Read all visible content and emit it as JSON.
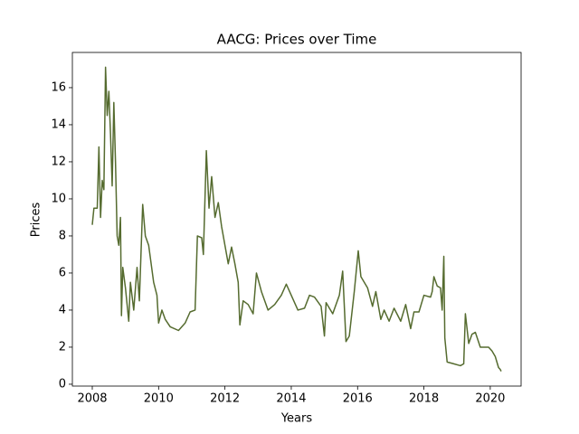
{
  "chart_data": {
    "type": "line",
    "title": "AACG: Prices over Time",
    "title_color": "#00008b",
    "x_label": "Years",
    "y_label": "Prices",
    "axis_label_color": "#b22222",
    "xlim": [
      2007.4,
      2020.93
    ],
    "ylim": [
      -0.1,
      17.9
    ],
    "xticks": [
      2008,
      2010,
      2012,
      2014,
      2016,
      2018,
      2020
    ],
    "yticks": [
      0,
      2,
      4,
      6,
      8,
      10,
      12,
      14,
      16
    ],
    "grid": false,
    "series": [
      {
        "color": "#556b2f",
        "x": [
          2008.0,
          2008.05,
          2008.15,
          2008.2,
          2008.25,
          2008.3,
          2008.35,
          2008.4,
          2008.45,
          2008.5,
          2008.55,
          2008.6,
          2008.65,
          2008.7,
          2008.75,
          2008.8,
          2008.85,
          2008.88,
          2008.92,
          2009.0,
          2009.1,
          2009.15,
          2009.25,
          2009.35,
          2009.42,
          2009.52,
          2009.6,
          2009.7,
          2009.85,
          2009.95,
          2010.0,
          2010.1,
          2010.2,
          2010.35,
          2010.6,
          2010.8,
          2010.95,
          2011.1,
          2011.17,
          2011.3,
          2011.35,
          2011.44,
          2011.52,
          2011.6,
          2011.7,
          2011.8,
          2011.9,
          2012.0,
          2012.1,
          2012.2,
          2012.3,
          2012.4,
          2012.45,
          2012.55,
          2012.7,
          2012.85,
          2012.95,
          2013.1,
          2013.3,
          2013.5,
          2013.7,
          2013.85,
          2014.0,
          2014.2,
          2014.4,
          2014.55,
          2014.7,
          2014.9,
          2015.0,
          2015.05,
          2015.25,
          2015.45,
          2015.55,
          2015.65,
          2015.75,
          2015.9,
          2016.02,
          2016.1,
          2016.3,
          2016.45,
          2016.55,
          2016.7,
          2016.8,
          2016.95,
          2017.1,
          2017.3,
          2017.45,
          2017.6,
          2017.7,
          2017.85,
          2018.0,
          2018.2,
          2018.25,
          2018.3,
          2018.4,
          2018.5,
          2018.55,
          2018.6,
          2018.63,
          2018.7,
          2018.9,
          2019.1,
          2019.2,
          2019.25,
          2019.35,
          2019.45,
          2019.55,
          2019.7,
          2019.95,
          2020.05,
          2020.15,
          2020.2,
          2020.25,
          2020.3,
          2020.33
        ],
        "values": [
          8.6,
          9.5,
          9.5,
          12.8,
          9.0,
          11.0,
          10.5,
          17.1,
          14.5,
          15.8,
          13.5,
          10.7,
          15.2,
          12.0,
          8.0,
          7.5,
          9.0,
          3.7,
          6.3,
          5.2,
          3.4,
          5.5,
          4.0,
          6.3,
          4.5,
          9.7,
          8.0,
          7.5,
          5.5,
          4.8,
          3.3,
          4.0,
          3.5,
          3.1,
          2.9,
          3.3,
          3.9,
          4.0,
          8.0,
          7.9,
          7.0,
          12.6,
          9.5,
          11.2,
          9.0,
          9.8,
          8.5,
          7.5,
          6.5,
          7.4,
          6.5,
          5.5,
          3.2,
          4.5,
          4.3,
          3.8,
          6.0,
          5.0,
          4.0,
          4.3,
          4.8,
          5.4,
          4.8,
          4.0,
          4.1,
          4.8,
          4.7,
          4.2,
          2.6,
          4.4,
          3.8,
          4.8,
          6.1,
          2.3,
          2.6,
          5.0,
          7.2,
          5.8,
          5.2,
          4.2,
          5.0,
          3.5,
          4.0,
          3.4,
          4.1,
          3.4,
          4.3,
          3.0,
          3.9,
          3.9,
          4.8,
          4.7,
          5.0,
          5.8,
          5.3,
          5.2,
          4.0,
          6.9,
          2.5,
          1.2,
          1.1,
          1.0,
          1.1,
          3.8,
          2.2,
          2.7,
          2.8,
          2.0,
          2.0,
          1.8,
          1.5,
          1.2,
          0.9,
          0.8,
          0.7
        ]
      }
    ]
  }
}
